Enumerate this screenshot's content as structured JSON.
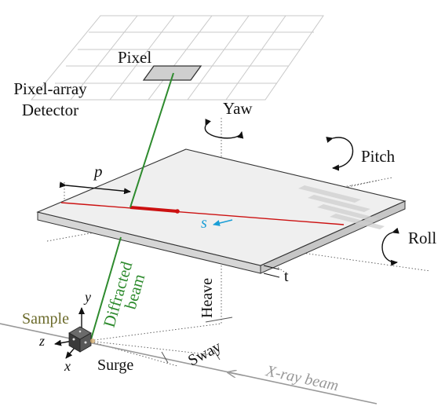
{
  "labels": {
    "pixel": "Pixel",
    "detector_line1": "Pixel-array",
    "detector_line2": "Detector",
    "yaw": "Yaw",
    "pitch": "Pitch",
    "roll": "Roll",
    "p": "p",
    "s": "s",
    "t": "t",
    "heave": "Heave",
    "diffracted_line1": "Diffracted",
    "diffracted_line2": "beam",
    "sample": "Sample",
    "axis_y": "y",
    "axis_z": "z",
    "axis_x": "x",
    "surge": "Surge",
    "sway": "Sway",
    "xray_beam": "X-ray beam"
  },
  "colors": {
    "diffracted_beam": "#2e8b2e",
    "trace": "#cc1111",
    "s_arrow": "#1a9ed6",
    "sample_text": "#6b6a2a",
    "xray_beam": "#999999",
    "plate_top": "#efefef",
    "plate_side": "#d6d6d6",
    "grid": "#c8c8c8"
  }
}
